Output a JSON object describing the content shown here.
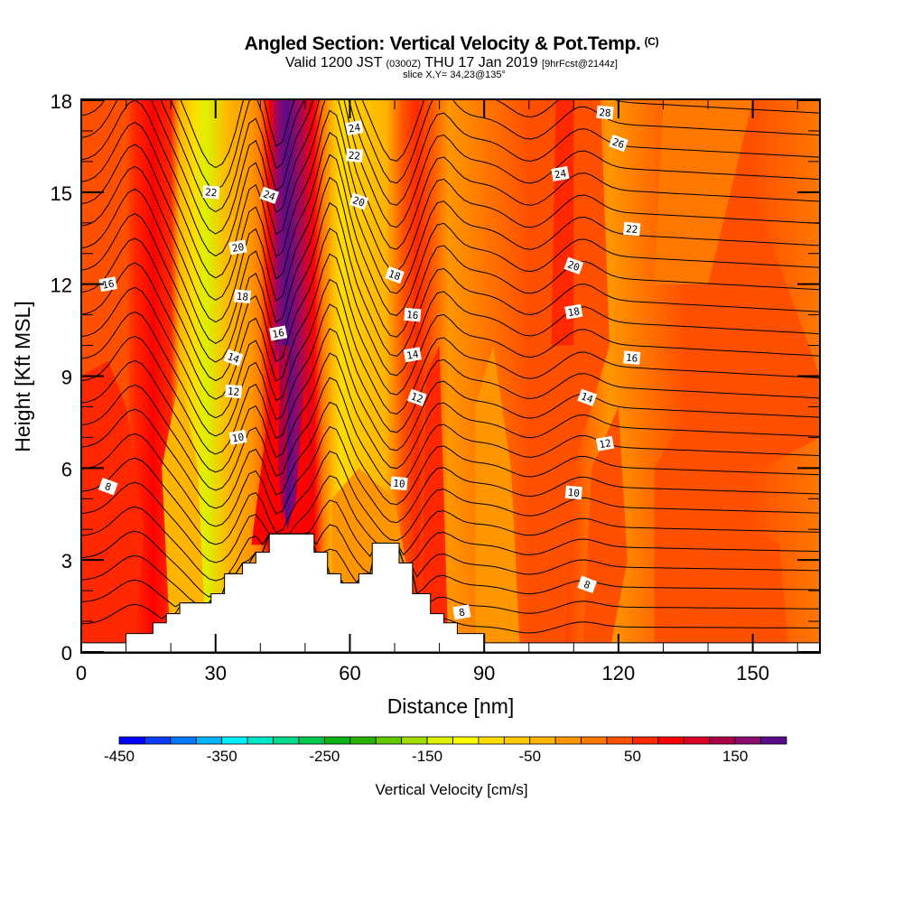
{
  "header": {
    "title": "Angled Section: Vertical Velocity & Pot.Temp.",
    "copyright": "(C)",
    "valid_prefix": "Valid 1200 JST",
    "valid_utc": "(0300Z)",
    "valid_date": "THU 17 Jan 2019",
    "forecast": "[9hrFcst@2144z]",
    "slice": "slice X,Y= 34,23@135°"
  },
  "chart_data": {
    "type": "heatmap",
    "title": "Angled Section: Vertical Velocity & Pot.Temp.",
    "xlabel": "Distance [nm]",
    "ylabel": "Height [Kft MSL]",
    "xlim": [
      0,
      165
    ],
    "ylim": [
      0,
      18
    ],
    "x_ticks": [
      "0",
      "30",
      "60",
      "90",
      "120",
      "150"
    ],
    "x_tick_values": [
      0,
      30,
      60,
      90,
      120,
      150
    ],
    "y_ticks": [
      "0",
      "3",
      "6",
      "9",
      "12",
      "15",
      "18"
    ],
    "y_tick_values": [
      0,
      3,
      6,
      9,
      12,
      15,
      18
    ],
    "colorbar": {
      "label": "Vertical Velocity [cm/s]",
      "min": -450,
      "max": 200,
      "step": 25,
      "tick_labels": [
        "-450",
        "-350",
        "-250",
        "-150",
        "-50",
        "50",
        "150"
      ],
      "tick_values": [
        -450,
        -350,
        -250,
        -150,
        -50,
        50,
        150
      ],
      "colors": [
        "#0000ff",
        "#0a3cff",
        "#0078ff",
        "#00b4ff",
        "#00f0ff",
        "#00e6c8",
        "#00dc8c",
        "#00c850",
        "#0ab414",
        "#28b400",
        "#64c800",
        "#a0dc00",
        "#dcf000",
        "#ffff00",
        "#ffdc00",
        "#ffc800",
        "#ffb400",
        "#ff9600",
        "#ff7800",
        "#ff5000",
        "#ff2800",
        "#ff0000",
        "#dc0028",
        "#aa0046",
        "#8c0a6e",
        "#5a0a8c"
      ]
    },
    "field_profile": {
      "description_axis": "distance_nm",
      "distance_nm": [
        0,
        10,
        12,
        16,
        20,
        22,
        25,
        28,
        33,
        38,
        40,
        42,
        44,
        46,
        48,
        52,
        54,
        56,
        58,
        62,
        68,
        72,
        75,
        78,
        82,
        90,
        100,
        105,
        110,
        118,
        125,
        135,
        150,
        165
      ],
      "vertical_velocity_cm_s": [
        25,
        25,
        50,
        75,
        50,
        -50,
        -100,
        -150,
        -50,
        -25,
        0,
        75,
        150,
        175,
        150,
        75,
        0,
        -50,
        -100,
        -75,
        -50,
        25,
        50,
        25,
        -25,
        0,
        25,
        50,
        25,
        -25,
        0,
        25,
        25,
        0
      ]
    },
    "terrain_kft": {
      "distance_nm": [
        0,
        10,
        16,
        19,
        22,
        29,
        32,
        36,
        39,
        42,
        52,
        55,
        58,
        62,
        65,
        71,
        74,
        78,
        81,
        84,
        90
      ],
      "height_kft": [
        0.3,
        0.6,
        0.95,
        1.25,
        1.6,
        1.9,
        2.55,
        2.9,
        3.25,
        3.85,
        3.25,
        2.55,
        2.25,
        2.55,
        3.55,
        2.9,
        1.9,
        1.25,
        0.95,
        0.6,
        0.3
      ]
    },
    "potential_temperature_contours": {
      "interval": 1,
      "labels": [
        {
          "value": "16",
          "at_nm": 6,
          "at_kft": 12.0
        },
        {
          "value": "22",
          "at_nm": 29,
          "at_kft": 15.0
        },
        {
          "value": "24",
          "at_nm": 42,
          "at_kft": 14.9
        },
        {
          "value": "24",
          "at_nm": 61,
          "at_kft": 17.1
        },
        {
          "value": "22",
          "at_nm": 61,
          "at_kft": 16.2
        },
        {
          "value": "20",
          "at_nm": 62,
          "at_kft": 14.7
        },
        {
          "value": "20",
          "at_nm": 35,
          "at_kft": 13.2
        },
        {
          "value": "18",
          "at_nm": 36,
          "at_kft": 11.6
        },
        {
          "value": "18",
          "at_nm": 70,
          "at_kft": 12.3
        },
        {
          "value": "16",
          "at_nm": 44,
          "at_kft": 10.4
        },
        {
          "value": "16",
          "at_nm": 74,
          "at_kft": 11.0
        },
        {
          "value": "14",
          "at_nm": 34,
          "at_kft": 9.6
        },
        {
          "value": "14",
          "at_nm": 74,
          "at_kft": 9.7
        },
        {
          "value": "12",
          "at_nm": 34,
          "at_kft": 8.5
        },
        {
          "value": "12",
          "at_nm": 75,
          "at_kft": 8.3
        },
        {
          "value": "10",
          "at_nm": 35,
          "at_kft": 7.0
        },
        {
          "value": "10",
          "at_nm": 71,
          "at_kft": 5.5
        },
        {
          "value": "8",
          "at_nm": 6,
          "at_kft": 5.4
        },
        {
          "value": "8",
          "at_nm": 85,
          "at_kft": 1.3
        },
        {
          "value": "28",
          "at_nm": 117,
          "at_kft": 17.6
        },
        {
          "value": "26",
          "at_nm": 120,
          "at_kft": 16.6
        },
        {
          "value": "24",
          "at_nm": 107,
          "at_kft": 15.6
        },
        {
          "value": "22",
          "at_nm": 123,
          "at_kft": 13.8
        },
        {
          "value": "20",
          "at_nm": 110,
          "at_kft": 12.6
        },
        {
          "value": "18",
          "at_nm": 110,
          "at_kft": 11.1
        },
        {
          "value": "16",
          "at_nm": 123,
          "at_kft": 9.6
        },
        {
          "value": "14",
          "at_nm": 113,
          "at_kft": 8.3
        },
        {
          "value": "12",
          "at_nm": 117,
          "at_kft": 6.8
        },
        {
          "value": "10",
          "at_nm": 110,
          "at_kft": 5.2
        },
        {
          "value": "8",
          "at_nm": 113,
          "at_kft": 2.2
        }
      ]
    }
  }
}
